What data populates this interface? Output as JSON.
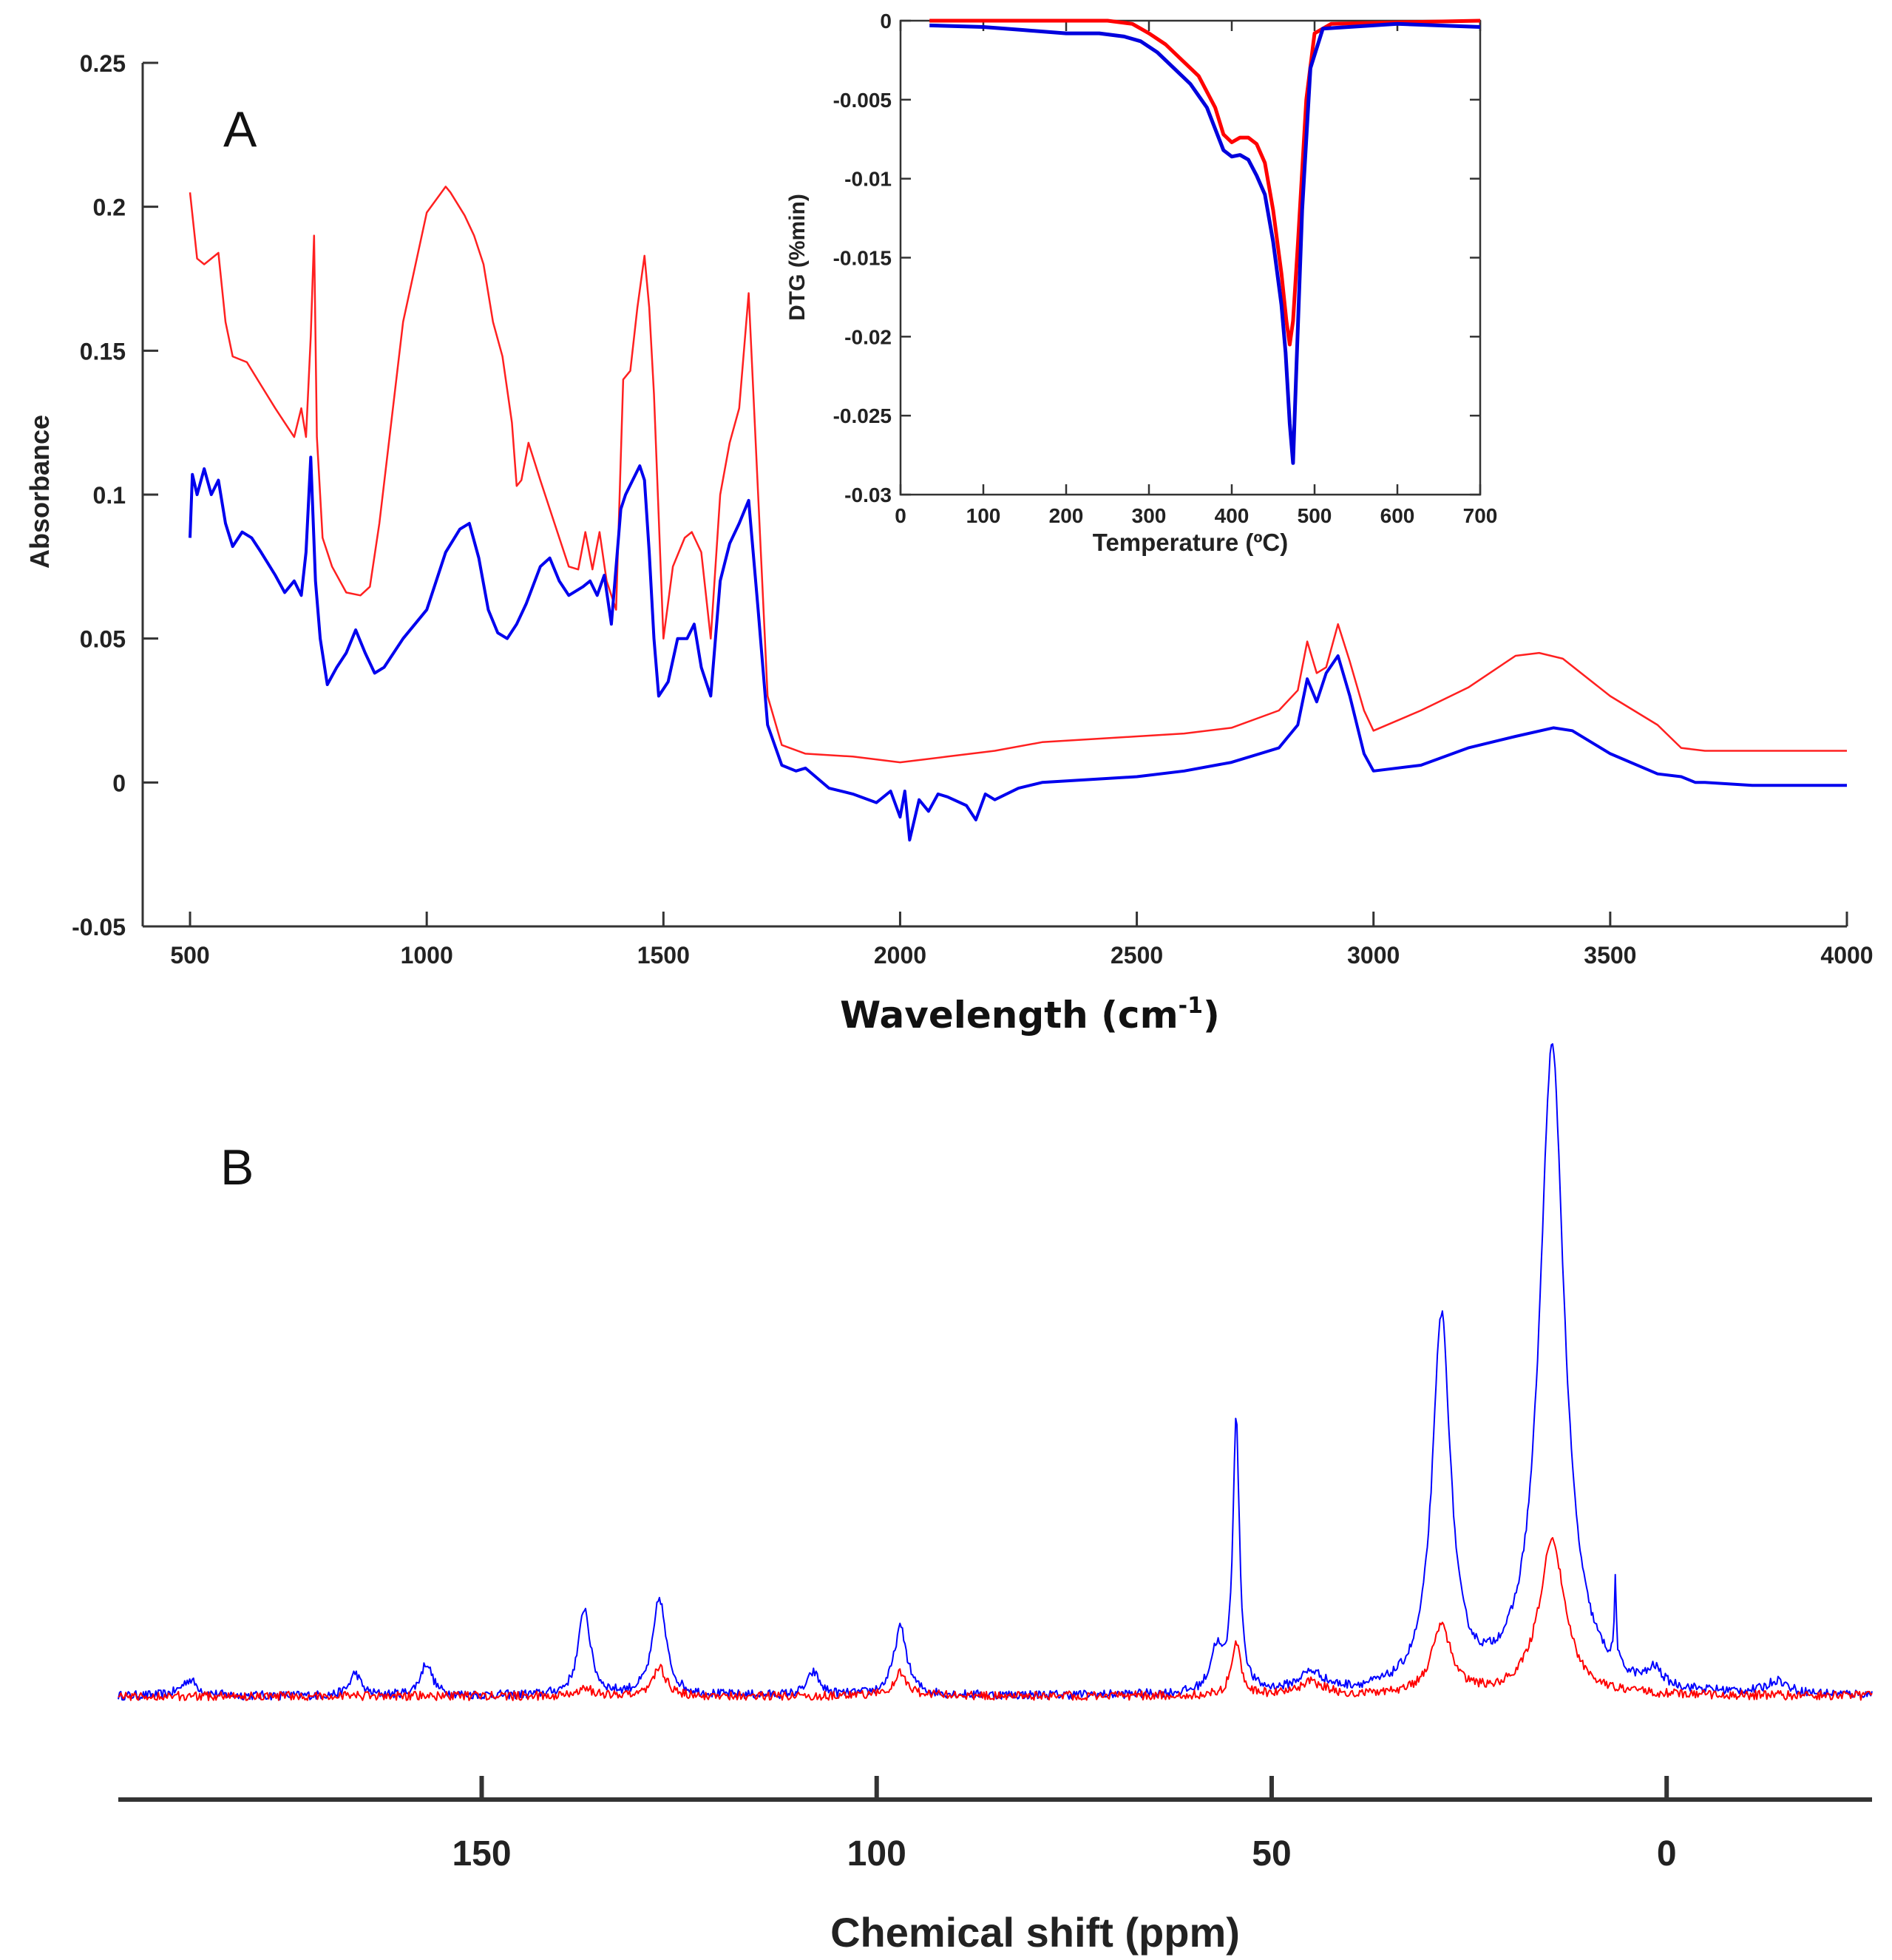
{
  "figure": {
    "panel_a_label": "A",
    "panel_b_label": "B"
  },
  "chart_data": [
    {
      "id": "ftir",
      "type": "line",
      "panel": "A",
      "title": "",
      "xlabel_main": "Wavelength (cm",
      "xlabel_sup": "-1",
      "xlabel_end": ")",
      "ylabel": "Absorbance",
      "xlim": [
        400,
        4000
      ],
      "ylim": [
        -0.05,
        0.25
      ],
      "xticks": [
        500,
        1000,
        1500,
        2000,
        2500,
        3000,
        3500,
        4000
      ],
      "yticks": [
        -0.05,
        0,
        0.05,
        0.1,
        0.15,
        0.2,
        0.25
      ],
      "ytick_labels": [
        "-0.05",
        "0",
        "0.05",
        "0.1",
        "0.15",
        "0.2",
        "0.25"
      ],
      "series": [
        {
          "name": "red",
          "color": "#ff2020",
          "x": [
            500,
            515,
            530,
            560,
            575,
            590,
            620,
            650,
            680,
            700,
            720,
            735,
            745,
            755,
            762,
            768,
            780,
            800,
            830,
            860,
            880,
            900,
            950,
            1000,
            1040,
            1050,
            1080,
            1100,
            1120,
            1140,
            1160,
            1180,
            1190,
            1200,
            1215,
            1240,
            1270,
            1300,
            1320,
            1335,
            1350,
            1365,
            1380,
            1400,
            1415,
            1430,
            1445,
            1460,
            1470,
            1480,
            1500,
            1520,
            1545,
            1560,
            1580,
            1600,
            1620,
            1640,
            1660,
            1680,
            1700,
            1720,
            1750,
            1800,
            1900,
            2000,
            2050,
            2100,
            2200,
            2300,
            2400,
            2500,
            2600,
            2700,
            2800,
            2840,
            2860,
            2880,
            2900,
            2925,
            2950,
            2980,
            3000,
            3100,
            3200,
            3300,
            3350,
            3400,
            3500,
            3600,
            3650,
            3700,
            3800,
            3900,
            4000
          ],
          "values": [
            0.205,
            0.182,
            0.18,
            0.184,
            0.16,
            0.148,
            0.146,
            0.138,
            0.13,
            0.125,
            0.12,
            0.13,
            0.12,
            0.155,
            0.19,
            0.12,
            0.085,
            0.075,
            0.066,
            0.065,
            0.068,
            0.09,
            0.16,
            0.198,
            0.207,
            0.205,
            0.197,
            0.19,
            0.18,
            0.16,
            0.148,
            0.125,
            0.103,
            0.105,
            0.118,
            0.105,
            0.09,
            0.075,
            0.074,
            0.087,
            0.074,
            0.087,
            0.07,
            0.06,
            0.14,
            0.143,
            0.165,
            0.183,
            0.165,
            0.135,
            0.05,
            0.075,
            0.085,
            0.087,
            0.08,
            0.05,
            0.1,
            0.118,
            0.13,
            0.17,
            0.1,
            0.03,
            0.013,
            0.01,
            0.009,
            0.007,
            0.008,
            0.009,
            0.011,
            0.014,
            0.015,
            0.016,
            0.017,
            0.019,
            0.025,
            0.032,
            0.049,
            0.038,
            0.04,
            0.055,
            0.042,
            0.025,
            0.018,
            0.025,
            0.033,
            0.044,
            0.045,
            0.043,
            0.03,
            0.02,
            0.012,
            0.011,
            0.011,
            0.011,
            0.011
          ]
        },
        {
          "name": "blue",
          "color": "#0000ee",
          "x": [
            500,
            505,
            515,
            530,
            545,
            560,
            575,
            590,
            610,
            630,
            650,
            680,
            700,
            720,
            735,
            745,
            755,
            765,
            775,
            790,
            810,
            830,
            850,
            870,
            890,
            910,
            950,
            1000,
            1040,
            1070,
            1090,
            1110,
            1130,
            1150,
            1170,
            1190,
            1210,
            1240,
            1260,
            1280,
            1300,
            1330,
            1345,
            1360,
            1375,
            1390,
            1410,
            1420,
            1435,
            1450,
            1460,
            1470,
            1480,
            1490,
            1510,
            1530,
            1550,
            1565,
            1580,
            1600,
            1620,
            1640,
            1660,
            1680,
            1700,
            1720,
            1750,
            1780,
            1800,
            1850,
            1900,
            1950,
            1980,
            2000,
            2010,
            2020,
            2040,
            2060,
            2080,
            2100,
            2140,
            2160,
            2180,
            2200,
            2250,
            2300,
            2400,
            2500,
            2600,
            2700,
            2800,
            2840,
            2860,
            2880,
            2900,
            2925,
            2950,
            2980,
            3000,
            3100,
            3200,
            3300,
            3380,
            3420,
            3500,
            3600,
            3650,
            3680,
            3700,
            3800,
            3900,
            4000
          ],
          "values": [
            0.085,
            0.107,
            0.1,
            0.109,
            0.1,
            0.105,
            0.09,
            0.082,
            0.087,
            0.085,
            0.08,
            0.072,
            0.066,
            0.07,
            0.065,
            0.08,
            0.113,
            0.07,
            0.05,
            0.034,
            0.04,
            0.045,
            0.053,
            0.045,
            0.038,
            0.04,
            0.05,
            0.06,
            0.08,
            0.088,
            0.09,
            0.078,
            0.06,
            0.052,
            0.05,
            0.055,
            0.062,
            0.075,
            0.078,
            0.07,
            0.065,
            0.068,
            0.07,
            0.065,
            0.072,
            0.055,
            0.095,
            0.1,
            0.105,
            0.11,
            0.105,
            0.08,
            0.05,
            0.03,
            0.035,
            0.05,
            0.05,
            0.055,
            0.04,
            0.03,
            0.07,
            0.083,
            0.09,
            0.098,
            0.06,
            0.02,
            0.006,
            0.004,
            0.005,
            -0.002,
            -0.004,
            -0.007,
            -0.003,
            -0.012,
            -0.003,
            -0.02,
            -0.006,
            -0.01,
            -0.004,
            -0.005,
            -0.008,
            -0.013,
            -0.004,
            -0.006,
            -0.002,
            0.0,
            0.001,
            0.002,
            0.004,
            0.007,
            0.012,
            0.02,
            0.036,
            0.028,
            0.038,
            0.044,
            0.03,
            0.01,
            0.004,
            0.006,
            0.012,
            0.016,
            0.019,
            0.018,
            0.01,
            0.003,
            0.002,
            0.0,
            0.0,
            -0.001,
            -0.001,
            -0.001
          ]
        }
      ]
    },
    {
      "id": "dtg",
      "type": "line",
      "panel": "A-inset",
      "xlabel": "Temperature (ºC)",
      "ylabel": "DTG (%min)",
      "xlim": [
        0,
        700
      ],
      "ylim": [
        -0.03,
        0
      ],
      "xticks": [
        0,
        100,
        200,
        300,
        400,
        500,
        600,
        700
      ],
      "yticks": [
        -0.03,
        -0.025,
        -0.02,
        -0.015,
        -0.01,
        -0.005,
        0
      ],
      "ytick_labels": [
        "-0.03",
        "-0.025",
        "-0.02",
        "-0.015",
        "-0.01",
        "-0.005",
        "0"
      ],
      "series": [
        {
          "name": "red",
          "color": "#ff0000",
          "x": [
            35,
            100,
            200,
            250,
            280,
            300,
            320,
            340,
            360,
            380,
            390,
            400,
            410,
            420,
            430,
            440,
            450,
            460,
            466,
            470,
            474,
            480,
            490,
            500,
            520,
            600,
            700
          ],
          "values": [
            0,
            0,
            0,
            0,
            -0.0002,
            -0.0008,
            -0.0015,
            -0.0025,
            -0.0035,
            -0.0055,
            -0.0072,
            -0.0077,
            -0.0074,
            -0.0074,
            -0.0078,
            -0.009,
            -0.012,
            -0.016,
            -0.019,
            -0.0205,
            -0.019,
            -0.014,
            -0.005,
            -0.0008,
            -0.0002,
            -0.0001,
            0
          ]
        },
        {
          "name": "blue",
          "color": "#0000dd",
          "x": [
            35,
            100,
            150,
            200,
            240,
            270,
            290,
            310,
            330,
            350,
            370,
            390,
            400,
            410,
            420,
            430,
            440,
            450,
            460,
            465,
            470,
            474,
            478,
            485,
            495,
            510,
            600,
            700
          ],
          "values": [
            -0.0003,
            -0.0004,
            -0.0006,
            -0.0008,
            -0.0008,
            -0.001,
            -0.0013,
            -0.002,
            -0.003,
            -0.004,
            -0.0055,
            -0.0082,
            -0.0086,
            -0.0085,
            -0.0088,
            -0.0098,
            -0.011,
            -0.014,
            -0.018,
            -0.021,
            -0.0255,
            -0.028,
            -0.022,
            -0.012,
            -0.003,
            -0.0005,
            -0.0002,
            -0.0004
          ]
        }
      ]
    },
    {
      "id": "nmr",
      "type": "line",
      "panel": "B",
      "xlabel": "Chemical shift (ppm)",
      "xlim": [
        196,
        -26
      ],
      "xticks": [
        150,
        100,
        50,
        0
      ],
      "x_reversed": true,
      "yaxis_visible": false,
      "baseline": 0,
      "series": [
        {
          "name": "blue",
          "color": "#0000ff",
          "peaks": [
            {
              "ppm": 187,
              "height": 0.025,
              "width": 1.2
            },
            {
              "ppm": 166,
              "height": 0.035,
              "width": 0.8
            },
            {
              "ppm": 157,
              "height": 0.05,
              "width": 0.9
            },
            {
              "ppm": 137,
              "height": 0.135,
              "width": 0.9
            },
            {
              "ppm": 127.5,
              "height": 0.15,
              "width": 1.0
            },
            {
              "ppm": 108,
              "height": 0.035,
              "width": 0.9
            },
            {
              "ppm": 97,
              "height": 0.105,
              "width": 1.0
            },
            {
              "ppm": 57,
              "height": 0.065,
              "width": 0.9
            },
            {
              "ppm": 54.5,
              "height": 0.42,
              "width": 0.5
            },
            {
              "ppm": 45,
              "height": 0.03,
              "width": 2.0
            },
            {
              "ppm": 28.5,
              "height": 0.575,
              "width": 1.4
            },
            {
              "ppm": 14.5,
              "height": 1.0,
              "width": 1.9
            },
            {
              "ppm": 6.5,
              "height": 0.13,
              "width": 0.15
            },
            {
              "ppm": 1.5,
              "height": 0.025,
              "width": 1.0
            },
            {
              "ppm": -14,
              "height": 0.02,
              "width": 1.5
            }
          ]
        },
        {
          "name": "red",
          "color": "#ff0000",
          "peaks": [
            {
              "ppm": 137,
              "height": 0.015,
              "width": 0.9
            },
            {
              "ppm": 127.5,
              "height": 0.045,
              "width": 1.0
            },
            {
              "ppm": 97,
              "height": 0.035,
              "width": 1.0
            },
            {
              "ppm": 54.5,
              "height": 0.08,
              "width": 0.7
            },
            {
              "ppm": 45,
              "height": 0.02,
              "width": 2.0
            },
            {
              "ppm": 28.5,
              "height": 0.105,
              "width": 1.5
            },
            {
              "ppm": 14.5,
              "height": 0.24,
              "width": 2.0
            }
          ]
        }
      ]
    }
  ]
}
